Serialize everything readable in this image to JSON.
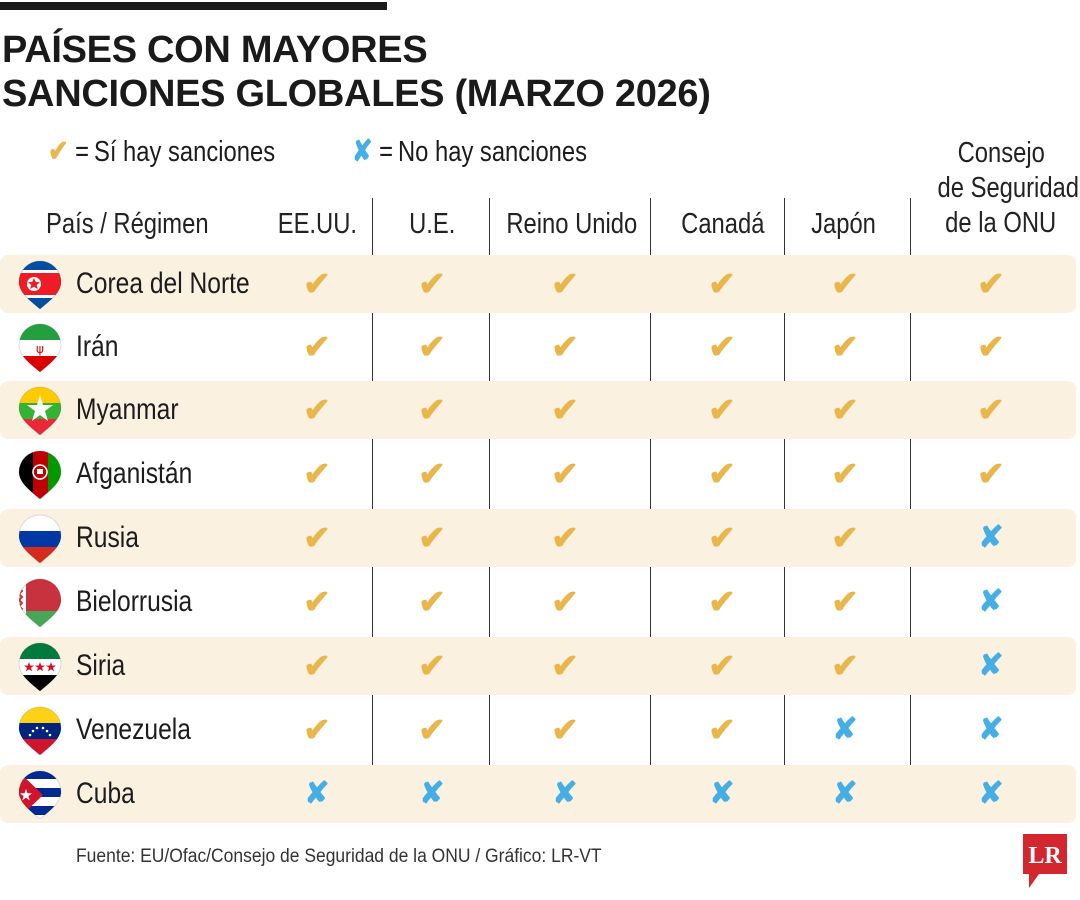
{
  "title": [
    "PAÍSES CON MAYORES",
    "SANCIONES GLOBALES (MARZO 2026)"
  ],
  "legend": {
    "yes_symbol": "✔",
    "yes_text": "Sí hay sanciones",
    "no_symbol": "✘",
    "no_text": "No hay sanciones",
    "equals": "="
  },
  "colors": {
    "yes": "#e8b64a",
    "no": "#44aee5",
    "row_shade": "#fbf1e1",
    "logo": "#d4262f"
  },
  "chart_data": {
    "type": "table",
    "row_header": "País / Régimen",
    "columns": [
      "EE.UU.",
      "U.E.",
      "Reino Unido",
      "Canadá",
      "Japón",
      "Consejo de Seguridad de la ONU"
    ],
    "column_header_lines": {
      "un": [
        "Consejo",
        "de Seguridad",
        "de la ONU"
      ]
    },
    "rows": [
      {
        "country": "Corea del Norte",
        "flag": "north-korea-flag-icon",
        "values": [
          true,
          true,
          true,
          true,
          true,
          true
        ]
      },
      {
        "country": "Irán",
        "flag": "iran-flag-icon",
        "values": [
          true,
          true,
          true,
          true,
          true,
          true
        ]
      },
      {
        "country": "Myanmar",
        "flag": "myanmar-flag-icon",
        "values": [
          true,
          true,
          true,
          true,
          true,
          true
        ]
      },
      {
        "country": "Afganistán",
        "flag": "afghanistan-flag-icon",
        "values": [
          true,
          true,
          true,
          true,
          true,
          true
        ]
      },
      {
        "country": "Rusia",
        "flag": "russia-flag-icon",
        "values": [
          true,
          true,
          true,
          true,
          true,
          false
        ]
      },
      {
        "country": "Bielorrusia",
        "flag": "belarus-flag-icon",
        "values": [
          true,
          true,
          true,
          true,
          true,
          false
        ]
      },
      {
        "country": "Siria",
        "flag": "syria-flag-icon",
        "values": [
          true,
          true,
          true,
          true,
          true,
          false
        ]
      },
      {
        "country": "Venezuela",
        "flag": "venezuela-flag-icon",
        "values": [
          true,
          true,
          true,
          true,
          false,
          false
        ]
      },
      {
        "country": "Cuba",
        "flag": "cuba-flag-icon",
        "values": [
          false,
          false,
          false,
          false,
          false,
          false
        ]
      }
    ]
  },
  "source": "Fuente: EU/Ofac/Consejo de Seguridad de la ONU / Gráfico: LR-VT",
  "logo": {
    "text": "LR",
    "name": "lr-logo-icon"
  }
}
